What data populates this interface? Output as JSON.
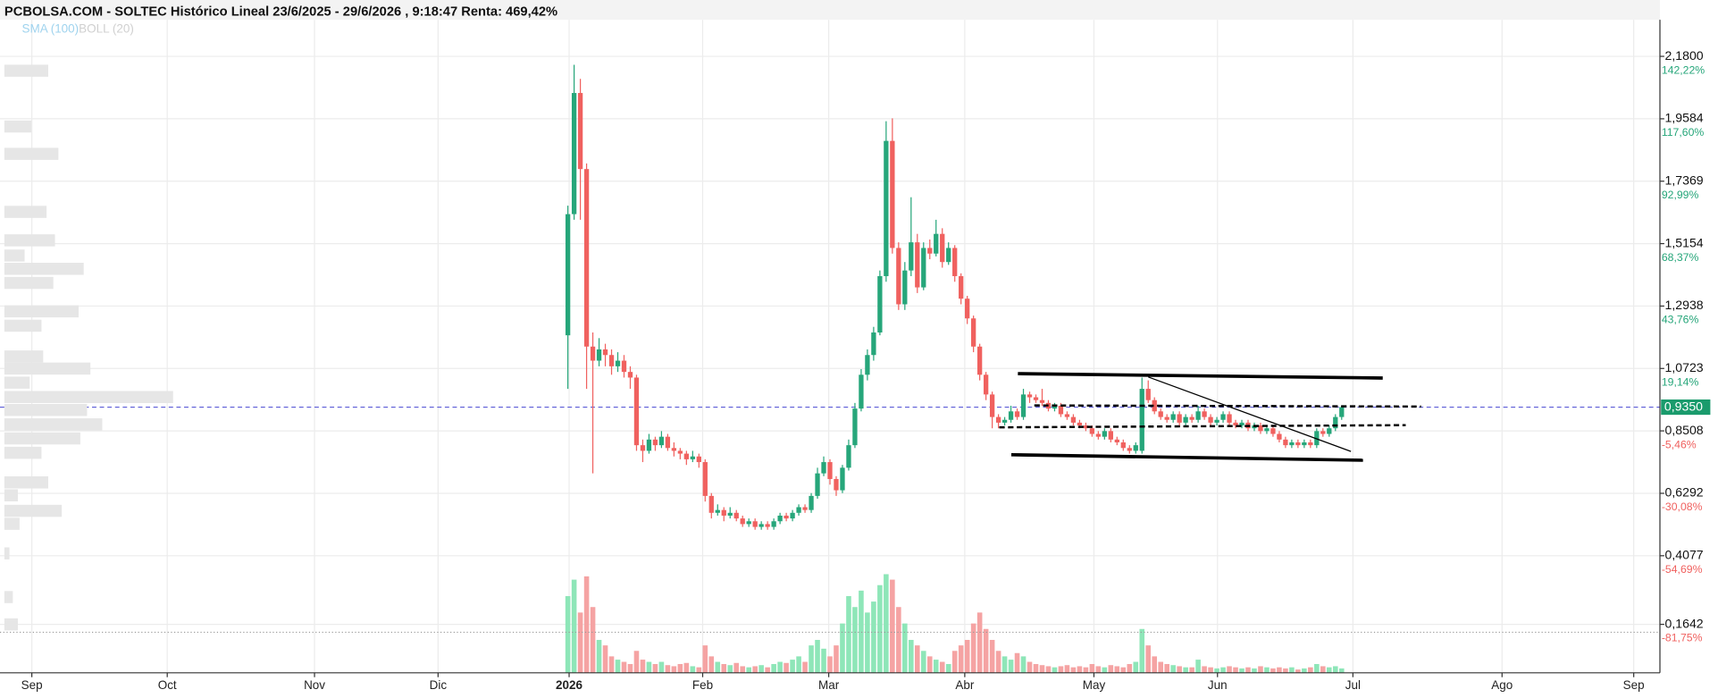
{
  "chart_data": {
    "type": "candlestick",
    "title": "PCBOLSA.COM - SOLTEC Histórico Lineal 23/6/2025 - 29/6/2026 , 9:18:47 Renta: 469,42%",
    "indicators": [
      {
        "name": "SMA (100)",
        "color": "#9fd3ee"
      },
      {
        "name": "BOLL (20)",
        "color": "#d0d0d0"
      }
    ],
    "up_color": "#26a67a",
    "down_color": "#f0615f",
    "volume_up_color": "#8ee6b8",
    "volume_down_color": "#f5a3a3",
    "grid": true,
    "xlim": [
      0,
      266
    ],
    "xticks": [
      {
        "value": 5.1,
        "label": "Sep"
      },
      {
        "value": 26.8,
        "label": "Oct"
      },
      {
        "value": 50.4,
        "label": "Nov"
      },
      {
        "value": 70.2,
        "label": "Dic"
      },
      {
        "value": 91.2,
        "label": "2026",
        "emphasis": true
      },
      {
        "value": 112.6,
        "label": "Feb"
      },
      {
        "value": 132.8,
        "label": "Mar"
      },
      {
        "value": 154.6,
        "label": "Abr"
      },
      {
        "value": 175.3,
        "label": "May"
      },
      {
        "value": 195.1,
        "label": "Jun"
      },
      {
        "value": 216.8,
        "label": "Jul"
      },
      {
        "value": 240.7,
        "label": "Ago"
      },
      {
        "value": 261.8,
        "label": "Sep"
      }
    ],
    "ylim": [
      0,
      2.31
    ],
    "yticks": [
      {
        "value": 2.18,
        "label": "2,1800"
      },
      {
        "value": 1.9584,
        "label": "1,9584"
      },
      {
        "value": 1.7369,
        "label": "1,7369"
      },
      {
        "value": 1.5154,
        "label": "1,5154"
      },
      {
        "value": 1.2938,
        "label": "1,2938"
      },
      {
        "value": 1.0723,
        "label": "1,0723"
      },
      {
        "value": 0.8508,
        "label": "0,8508"
      },
      {
        "value": 0.6292,
        "label": "0,6292"
      },
      {
        "value": 0.4077,
        "label": "0,4077"
      },
      {
        "value": 0.1642,
        "label": "0,1642"
      }
    ],
    "y2lim": [
      -100,
      156.7
    ],
    "y2ticks": [
      {
        "value": 142.22,
        "label": "142,22%"
      },
      {
        "value": 117.6,
        "label": "117,60%"
      },
      {
        "value": 92.99,
        "label": "92,99%"
      },
      {
        "value": 68.37,
        "label": "68,37%"
      },
      {
        "value": 43.76,
        "label": "43,76%"
      },
      {
        "value": 19.14,
        "label": "19,14%"
      },
      {
        "value": -5.46,
        "label": "-5,46%"
      },
      {
        "value": -30.08,
        "label": "-30,08%"
      },
      {
        "value": -54.69,
        "label": "-54,69%"
      },
      {
        "value": -81.75,
        "label": "-81,75%"
      }
    ],
    "last_price": {
      "value": 0.935,
      "label": "0,9350",
      "color": "#1a9b6c",
      "line_color": "#5b5bd6"
    },
    "x": [
      91,
      92,
      93,
      94,
      95,
      96,
      97,
      98,
      99,
      100,
      101,
      102,
      103,
      104,
      105,
      106,
      107,
      108,
      109,
      110,
      111,
      112,
      113,
      114,
      115,
      116,
      117,
      118,
      119,
      120,
      121,
      122,
      123,
      124,
      125,
      126,
      127,
      128,
      129,
      130,
      131,
      132,
      133,
      134,
      135,
      136,
      137,
      138,
      139,
      140,
      141,
      142,
      143,
      144,
      145,
      146,
      147,
      148,
      149,
      150,
      151,
      152,
      153,
      154,
      155,
      156,
      157,
      158,
      159,
      160,
      161,
      162,
      163,
      164,
      165,
      166,
      167,
      168,
      169,
      170,
      171,
      172,
      173,
      174,
      175,
      176,
      177,
      178,
      179,
      180,
      181,
      182,
      183,
      184,
      185,
      186,
      187,
      188,
      189,
      190,
      191,
      192,
      193,
      194,
      195,
      196,
      197,
      198,
      199,
      200,
      201,
      202,
      203,
      204,
      205,
      206,
      207,
      208,
      209,
      210,
      211,
      212,
      213,
      214,
      215
    ],
    "ohlc": [
      [
        1.19,
        1.65,
        1.0,
        1.62
      ],
      [
        1.62,
        2.15,
        1.6,
        2.05
      ],
      [
        2.05,
        2.1,
        1.6,
        1.78
      ],
      [
        1.78,
        1.8,
        1.0,
        1.15
      ],
      [
        1.15,
        1.2,
        0.7,
        1.1
      ],
      [
        1.1,
        1.18,
        1.08,
        1.14
      ],
      [
        1.14,
        1.16,
        1.08,
        1.12
      ],
      [
        1.12,
        1.14,
        1.05,
        1.08
      ],
      [
        1.08,
        1.13,
        1.06,
        1.1
      ],
      [
        1.1,
        1.12,
        1.04,
        1.06
      ],
      [
        1.06,
        1.08,
        1.0,
        1.04
      ],
      [
        1.04,
        1.05,
        0.78,
        0.8
      ],
      [
        0.8,
        0.82,
        0.74,
        0.78
      ],
      [
        0.78,
        0.84,
        0.77,
        0.82
      ],
      [
        0.82,
        0.83,
        0.78,
        0.8
      ],
      [
        0.8,
        0.85,
        0.79,
        0.83
      ],
      [
        0.83,
        0.84,
        0.78,
        0.79
      ],
      [
        0.79,
        0.81,
        0.76,
        0.78
      ],
      [
        0.78,
        0.79,
        0.75,
        0.77
      ],
      [
        0.77,
        0.78,
        0.73,
        0.75
      ],
      [
        0.75,
        0.78,
        0.74,
        0.76
      ],
      [
        0.76,
        0.77,
        0.72,
        0.74
      ],
      [
        0.74,
        0.75,
        0.6,
        0.62
      ],
      [
        0.62,
        0.63,
        0.54,
        0.56
      ],
      [
        0.56,
        0.59,
        0.55,
        0.57
      ],
      [
        0.57,
        0.58,
        0.53,
        0.55
      ],
      [
        0.55,
        0.58,
        0.54,
        0.56
      ],
      [
        0.56,
        0.57,
        0.53,
        0.54
      ],
      [
        0.54,
        0.55,
        0.51,
        0.52
      ],
      [
        0.52,
        0.54,
        0.51,
        0.53
      ],
      [
        0.53,
        0.54,
        0.5,
        0.51
      ],
      [
        0.51,
        0.53,
        0.5,
        0.52
      ],
      [
        0.52,
        0.53,
        0.5,
        0.51
      ],
      [
        0.51,
        0.54,
        0.5,
        0.53
      ],
      [
        0.53,
        0.56,
        0.52,
        0.55
      ],
      [
        0.55,
        0.56,
        0.53,
        0.54
      ],
      [
        0.54,
        0.57,
        0.53,
        0.56
      ],
      [
        0.56,
        0.59,
        0.55,
        0.58
      ],
      [
        0.58,
        0.59,
        0.56,
        0.57
      ],
      [
        0.57,
        0.63,
        0.56,
        0.62
      ],
      [
        0.62,
        0.72,
        0.61,
        0.7
      ],
      [
        0.7,
        0.76,
        0.69,
        0.74
      ],
      [
        0.74,
        0.75,
        0.66,
        0.68
      ],
      [
        0.68,
        0.69,
        0.62,
        0.64
      ],
      [
        0.64,
        0.73,
        0.63,
        0.72
      ],
      [
        0.72,
        0.82,
        0.71,
        0.8
      ],
      [
        0.8,
        0.95,
        0.79,
        0.93
      ],
      [
        0.93,
        1.07,
        0.92,
        1.05
      ],
      [
        1.05,
        1.14,
        1.03,
        1.12
      ],
      [
        1.12,
        1.22,
        1.1,
        1.2
      ],
      [
        1.2,
        1.42,
        1.19,
        1.4
      ],
      [
        1.4,
        1.95,
        1.38,
        1.88
      ],
      [
        1.88,
        1.96,
        1.48,
        1.5
      ],
      [
        1.5,
        1.52,
        1.28,
        1.3
      ],
      [
        1.3,
        1.45,
        1.28,
        1.42
      ],
      [
        1.42,
        1.68,
        1.4,
        1.52
      ],
      [
        1.52,
        1.55,
        1.34,
        1.36
      ],
      [
        1.36,
        1.52,
        1.35,
        1.5
      ],
      [
        1.5,
        1.53,
        1.46,
        1.48
      ],
      [
        1.48,
        1.6,
        1.47,
        1.55
      ],
      [
        1.55,
        1.57,
        1.43,
        1.45
      ],
      [
        1.45,
        1.52,
        1.44,
        1.5
      ],
      [
        1.5,
        1.51,
        1.38,
        1.4
      ],
      [
        1.4,
        1.41,
        1.3,
        1.32
      ],
      [
        1.32,
        1.33,
        1.23,
        1.25
      ],
      [
        1.25,
        1.26,
        1.13,
        1.15
      ],
      [
        1.15,
        1.16,
        1.03,
        1.05
      ],
      [
        1.05,
        1.06,
        0.96,
        0.98
      ],
      [
        0.98,
        0.99,
        0.86,
        0.9
      ],
      [
        0.9,
        0.91,
        0.86,
        0.88
      ],
      [
        0.88,
        0.9,
        0.87,
        0.89
      ],
      [
        0.89,
        0.94,
        0.88,
        0.92
      ],
      [
        0.92,
        0.93,
        0.89,
        0.9
      ],
      [
        0.9,
        1.0,
        0.89,
        0.98
      ],
      [
        0.98,
        0.99,
        0.95,
        0.97
      ],
      [
        0.97,
        0.98,
        0.95,
        0.96
      ],
      [
        0.96,
        1.0,
        0.94,
        0.95
      ],
      [
        0.95,
        0.96,
        0.92,
        0.93
      ],
      [
        0.93,
        0.95,
        0.92,
        0.94
      ],
      [
        0.94,
        0.95,
        0.9,
        0.91
      ],
      [
        0.91,
        0.92,
        0.89,
        0.9
      ],
      [
        0.9,
        0.91,
        0.87,
        0.88
      ],
      [
        0.88,
        0.89,
        0.86,
        0.87
      ],
      [
        0.87,
        0.88,
        0.85,
        0.86
      ],
      [
        0.86,
        0.87,
        0.83,
        0.84
      ],
      [
        0.84,
        0.85,
        0.82,
        0.83
      ],
      [
        0.83,
        0.86,
        0.82,
        0.85
      ],
      [
        0.85,
        0.86,
        0.81,
        0.82
      ],
      [
        0.82,
        0.83,
        0.8,
        0.81
      ],
      [
        0.81,
        0.82,
        0.78,
        0.79
      ],
      [
        0.79,
        0.8,
        0.77,
        0.78
      ],
      [
        0.78,
        0.81,
        0.77,
        0.8
      ],
      [
        0.78,
        1.04,
        0.77,
        1.0
      ],
      [
        1.0,
        1.03,
        0.95,
        0.96
      ],
      [
        0.96,
        0.97,
        0.91,
        0.92
      ],
      [
        0.92,
        0.93,
        0.89,
        0.9
      ],
      [
        0.9,
        0.91,
        0.88,
        0.89
      ],
      [
        0.89,
        0.92,
        0.88,
        0.91
      ],
      [
        0.91,
        0.92,
        0.87,
        0.88
      ],
      [
        0.88,
        0.91,
        0.87,
        0.9
      ],
      [
        0.9,
        0.91,
        0.88,
        0.89
      ],
      [
        0.89,
        0.94,
        0.88,
        0.92
      ],
      [
        0.92,
        0.93,
        0.89,
        0.9
      ],
      [
        0.9,
        0.91,
        0.87,
        0.88
      ],
      [
        0.88,
        0.9,
        0.87,
        0.89
      ],
      [
        0.89,
        0.92,
        0.88,
        0.91
      ],
      [
        0.91,
        0.92,
        0.87,
        0.88
      ],
      [
        0.88,
        0.89,
        0.86,
        0.87
      ],
      [
        0.87,
        0.89,
        0.86,
        0.88
      ],
      [
        0.88,
        0.89,
        0.85,
        0.86
      ],
      [
        0.86,
        0.88,
        0.85,
        0.87
      ],
      [
        0.87,
        0.88,
        0.84,
        0.85
      ],
      [
        0.85,
        0.87,
        0.84,
        0.86
      ],
      [
        0.86,
        0.87,
        0.83,
        0.84
      ],
      [
        0.84,
        0.85,
        0.81,
        0.82
      ],
      [
        0.82,
        0.83,
        0.79,
        0.8
      ],
      [
        0.8,
        0.82,
        0.79,
        0.81
      ],
      [
        0.81,
        0.82,
        0.79,
        0.8
      ],
      [
        0.8,
        0.82,
        0.79,
        0.81
      ],
      [
        0.81,
        0.82,
        0.79,
        0.8
      ],
      [
        0.8,
        0.86,
        0.79,
        0.85
      ],
      [
        0.85,
        0.86,
        0.83,
        0.84
      ],
      [
        0.84,
        0.87,
        0.83,
        0.86
      ],
      [
        0.86,
        0.91,
        0.85,
        0.9
      ],
      [
        0.9,
        0.94,
        0.89,
        0.935
      ]
    ],
    "volume_lim": [
      0,
      100
    ],
    "volume": [
      70,
      85,
      55,
      88,
      60,
      30,
      25,
      15,
      12,
      10,
      8,
      20,
      12,
      10,
      8,
      10,
      7,
      6,
      8,
      9,
      6,
      5,
      25,
      15,
      10,
      8,
      7,
      9,
      6,
      5,
      6,
      7,
      5,
      8,
      10,
      9,
      12,
      15,
      10,
      25,
      30,
      22,
      15,
      25,
      45,
      70,
      60,
      75,
      55,
      65,
      80,
      90,
      85,
      60,
      45,
      30,
      25,
      20,
      15,
      12,
      10,
      8,
      20,
      25,
      30,
      45,
      55,
      40,
      30,
      20,
      15,
      12,
      18,
      15,
      10,
      8,
      7,
      6,
      5,
      6,
      7,
      5,
      6,
      5,
      8,
      6,
      5,
      7,
      6,
      5,
      8,
      10,
      40,
      25,
      15,
      10,
      8,
      7,
      6,
      5,
      5,
      12,
      6,
      5,
      4,
      5,
      6,
      5,
      4,
      5,
      4,
      6,
      5,
      4,
      5,
      4,
      5,
      3,
      4,
      5,
      8,
      6,
      5,
      6,
      4
    ],
    "volume_profile": {
      "color": "#e6e6e6",
      "xlim": [
        0,
        100
      ],
      "prices": [
        2.129,
        1.931,
        1.834,
        1.628,
        1.527,
        1.473,
        1.426,
        1.376,
        1.275,
        1.224,
        1.115,
        1.072,
        1.022,
        0.971,
        0.925,
        0.874,
        0.824,
        0.773,
        0.668,
        0.622,
        0.567,
        0.521,
        0.416,
        0.261,
        0.164
      ],
      "values": [
        26,
        16,
        32,
        25,
        30,
        12,
        47,
        29,
        44,
        22,
        23,
        51,
        15,
        100,
        49,
        58,
        45,
        22,
        26,
        8,
        34,
        9,
        3,
        5,
        8
      ]
    }
  }
}
